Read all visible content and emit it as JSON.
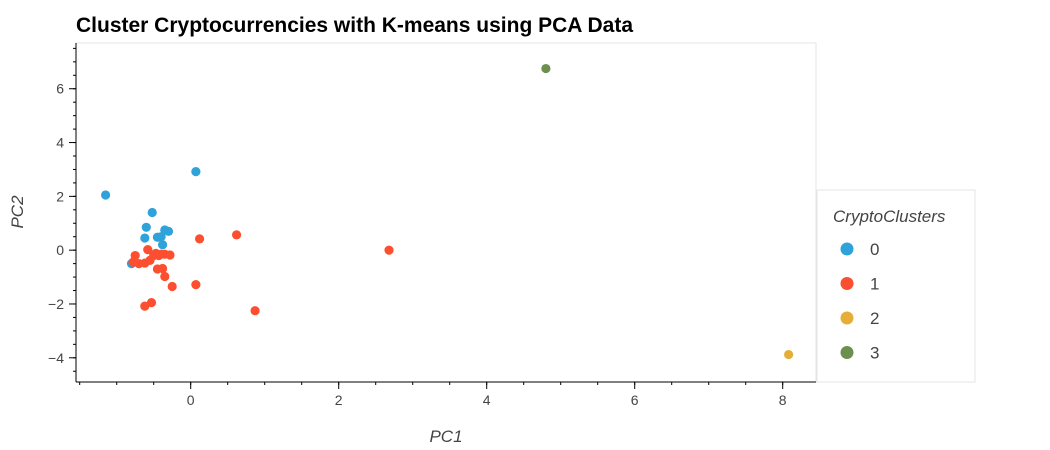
{
  "chart_data": {
    "type": "scatter",
    "title": "Cluster Cryptocurrencies with K-means using PCA Data",
    "xlabel": "PC1",
    "ylabel": "PC2",
    "xlim": [
      -1.55,
      8.45
    ],
    "ylim": [
      -4.9,
      7.7
    ],
    "xticks": [
      0,
      2,
      4,
      6,
      8
    ],
    "yticks": [
      -4,
      -2,
      0,
      2,
      4,
      6
    ],
    "grid": false,
    "legend": {
      "title": "CryptoClusters",
      "placement": "right",
      "entries": [
        {
          "label": "0",
          "color": "#30a2da"
        },
        {
          "label": "1",
          "color": "#fc4f30"
        },
        {
          "label": "2",
          "color": "#e5ae38"
        },
        {
          "label": "3",
          "color": "#6d904f"
        }
      ]
    },
    "series": [
      {
        "name": "0",
        "color": "#30a2da",
        "points": [
          [
            -1.15,
            2.05
          ],
          [
            0.07,
            2.92
          ],
          [
            -0.52,
            1.4
          ],
          [
            -0.6,
            0.85
          ],
          [
            -0.62,
            0.45
          ],
          [
            -0.45,
            0.48
          ],
          [
            -0.4,
            0.5
          ],
          [
            -0.35,
            0.75
          ],
          [
            -0.3,
            0.7
          ],
          [
            -0.38,
            0.2
          ],
          [
            -0.8,
            -0.5
          ]
        ]
      },
      {
        "name": "1",
        "color": "#fc4f30",
        "points": [
          [
            0.12,
            0.42
          ],
          [
            0.62,
            0.57
          ],
          [
            2.68,
            0.0
          ],
          [
            -0.75,
            -0.2
          ],
          [
            -0.78,
            -0.45
          ],
          [
            -0.7,
            -0.5
          ],
          [
            -0.62,
            -0.48
          ],
          [
            -0.58,
            0.02
          ],
          [
            -0.55,
            -0.38
          ],
          [
            -0.5,
            -0.2
          ],
          [
            -0.47,
            -0.12
          ],
          [
            -0.43,
            -0.2
          ],
          [
            -0.4,
            -0.15
          ],
          [
            -0.35,
            -0.15
          ],
          [
            -0.28,
            -0.18
          ],
          [
            -0.45,
            -0.7
          ],
          [
            -0.38,
            -0.68
          ],
          [
            -0.35,
            -0.98
          ],
          [
            -0.25,
            -1.35
          ],
          [
            0.07,
            -1.28
          ],
          [
            -0.53,
            -1.95
          ],
          [
            -0.62,
            -2.08
          ],
          [
            0.87,
            -2.25
          ]
        ]
      },
      {
        "name": "2",
        "color": "#e5ae38",
        "points": [
          [
            8.08,
            -3.88
          ]
        ]
      },
      {
        "name": "3",
        "color": "#6d904f",
        "points": [
          [
            4.8,
            6.75
          ]
        ]
      }
    ]
  }
}
